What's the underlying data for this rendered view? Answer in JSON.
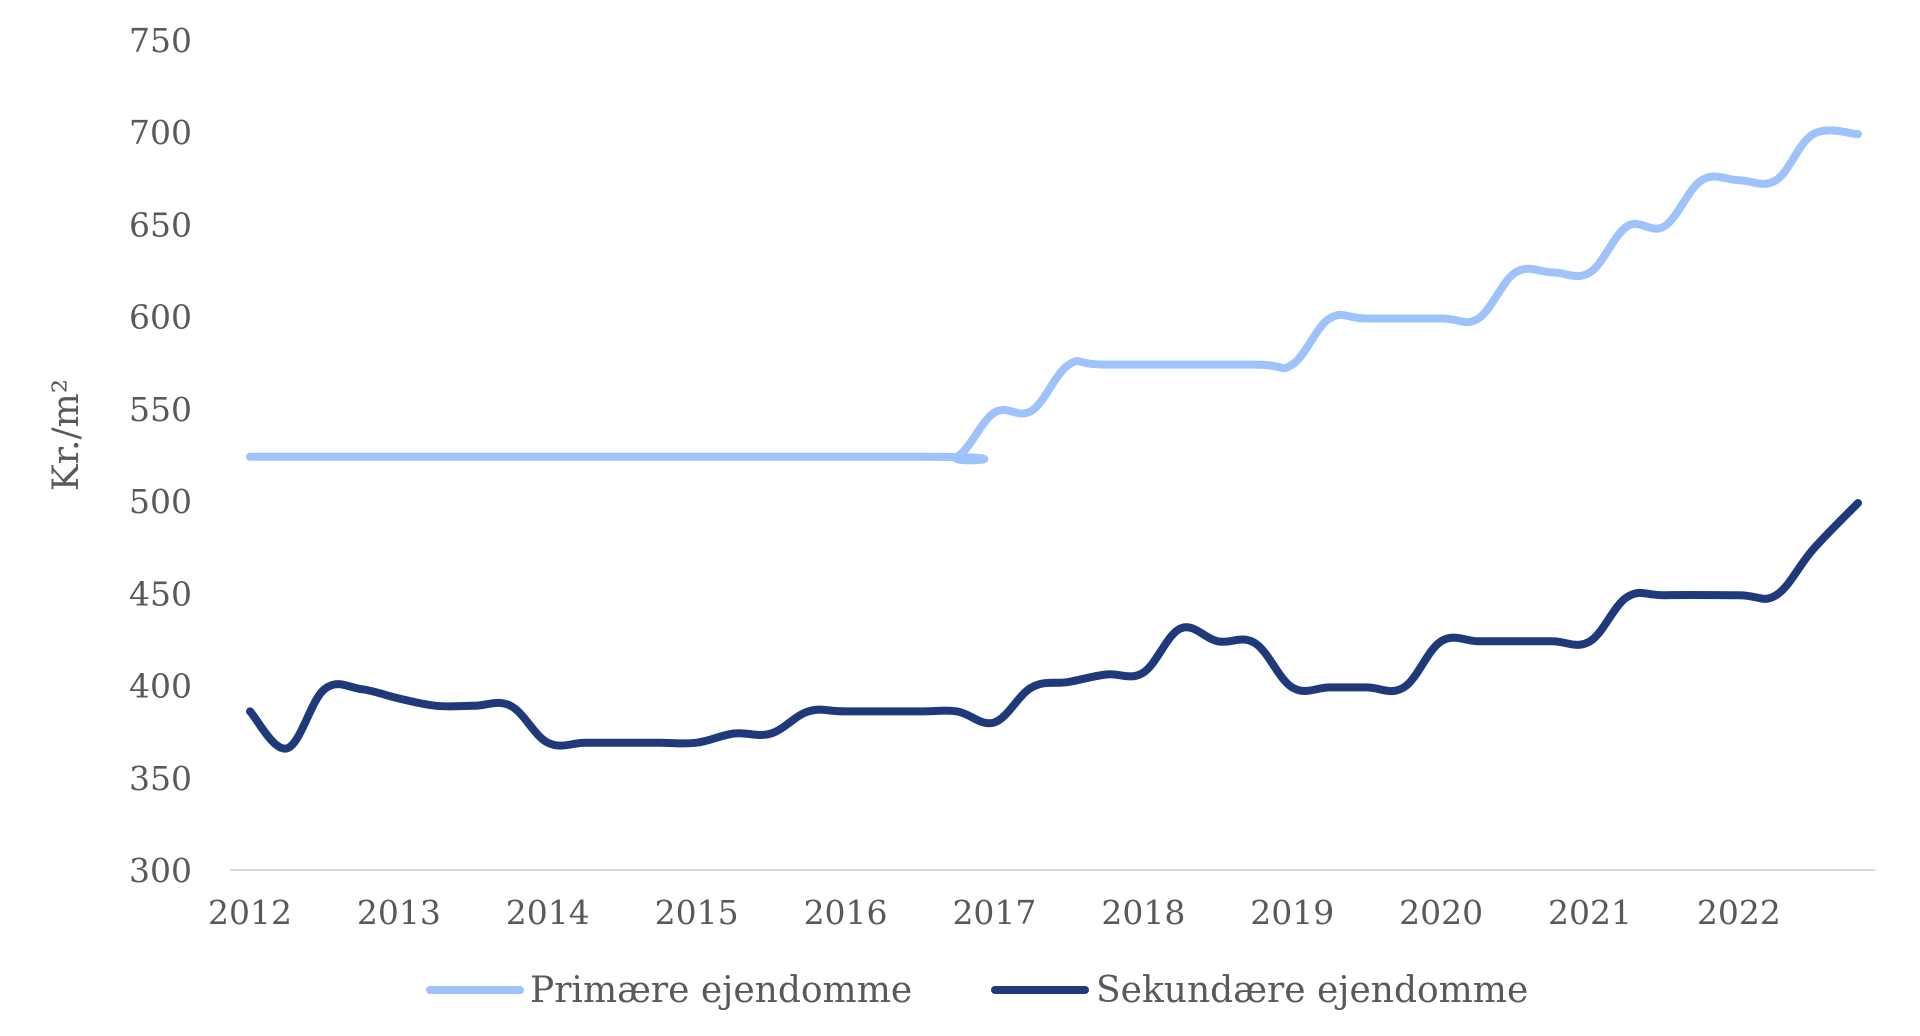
{
  "chart_data": {
    "type": "line",
    "ylabel": "Kr./m²",
    "ylim": [
      300,
      750
    ],
    "y_ticks": [
      "300",
      "350",
      "400",
      "450",
      "500",
      "550",
      "600",
      "650",
      "700",
      "750"
    ],
    "x_ticks": [
      "2012",
      "2013",
      "2014",
      "2015",
      "2016",
      "2017",
      "2018",
      "2019",
      "2020",
      "2021",
      "2022"
    ],
    "xlim": [
      2012,
      2022.8
    ],
    "grid": false,
    "legend_position": "bottom",
    "series": [
      {
        "name": "Primære ejendomme",
        "color": "#9dc3fa",
        "points": [
          [
            2012.0,
            524
          ],
          [
            2016.5,
            524
          ],
          [
            2016.75,
            524
          ],
          [
            2017.0,
            548
          ],
          [
            2017.25,
            549
          ],
          [
            2017.5,
            574
          ],
          [
            2017.75,
            574
          ],
          [
            2018.75,
            574
          ],
          [
            2019.0,
            574
          ],
          [
            2019.25,
            599
          ],
          [
            2019.5,
            599
          ],
          [
            2020.0,
            599
          ],
          [
            2020.25,
            599
          ],
          [
            2020.5,
            624
          ],
          [
            2020.75,
            624
          ],
          [
            2021.0,
            624
          ],
          [
            2021.25,
            649
          ],
          [
            2021.5,
            649
          ],
          [
            2021.75,
            674
          ],
          [
            2022.0,
            674
          ],
          [
            2022.25,
            674
          ],
          [
            2022.5,
            699
          ],
          [
            2022.8,
            699
          ]
        ]
      },
      {
        "name": "Sekundære ejendomme",
        "color": "#1f3a7a",
        "points": [
          [
            2012.0,
            386
          ],
          [
            2012.25,
            366
          ],
          [
            2012.5,
            398
          ],
          [
            2012.75,
            398
          ],
          [
            2013.0,
            393
          ],
          [
            2013.25,
            389
          ],
          [
            2013.5,
            389
          ],
          [
            2013.75,
            389
          ],
          [
            2014.0,
            369
          ],
          [
            2014.25,
            369
          ],
          [
            2014.5,
            369
          ],
          [
            2014.75,
            369
          ],
          [
            2015.0,
            369
          ],
          [
            2015.25,
            374
          ],
          [
            2015.5,
            374
          ],
          [
            2015.75,
            386
          ],
          [
            2016.0,
            386
          ],
          [
            2016.5,
            386
          ],
          [
            2016.75,
            386
          ],
          [
            2017.0,
            380
          ],
          [
            2017.25,
            399
          ],
          [
            2017.5,
            402
          ],
          [
            2017.75,
            406
          ],
          [
            2018.0,
            407
          ],
          [
            2018.25,
            431
          ],
          [
            2018.5,
            424
          ],
          [
            2018.75,
            423
          ],
          [
            2019.0,
            399
          ],
          [
            2019.25,
            399
          ],
          [
            2019.5,
            399
          ],
          [
            2019.75,
            399
          ],
          [
            2020.0,
            424
          ],
          [
            2020.25,
            424
          ],
          [
            2020.5,
            424
          ],
          [
            2020.75,
            424
          ],
          [
            2021.0,
            424
          ],
          [
            2021.25,
            448
          ],
          [
            2021.5,
            449
          ],
          [
            2022.0,
            449
          ],
          [
            2022.25,
            449
          ],
          [
            2022.5,
            474
          ],
          [
            2022.8,
            499
          ]
        ]
      }
    ]
  }
}
